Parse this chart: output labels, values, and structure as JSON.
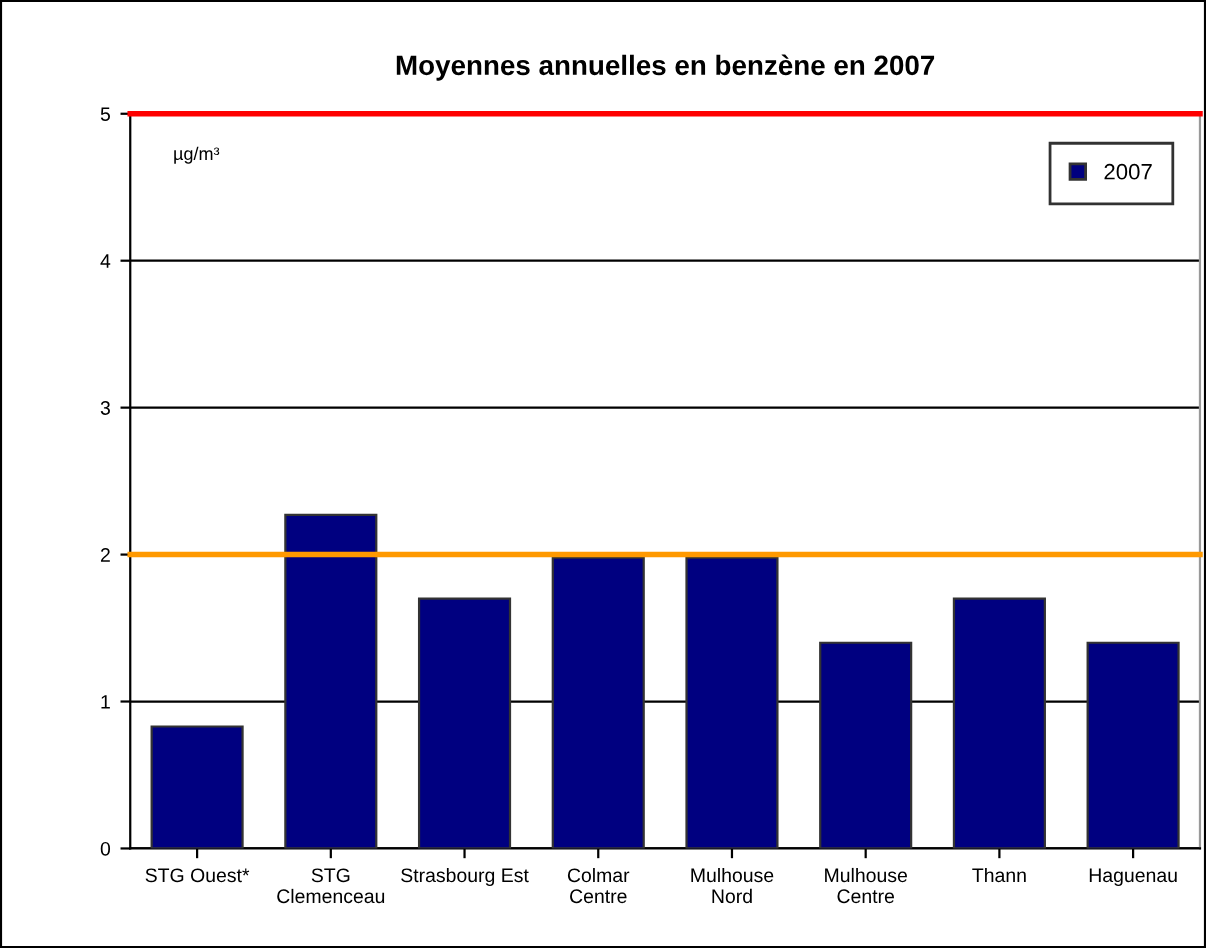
{
  "chart_data": {
    "type": "bar",
    "title": "Moyennes annuelles en benzène en 2007",
    "ylabel": "µg/m³",
    "categories": [
      "STG Ouest*",
      "STG\nClemenceau",
      "Strasbourg Est",
      "Colmar\nCentre",
      "Mulhouse\nNord",
      "Mulhouse\nCentre",
      "Thann",
      "Haguenau"
    ],
    "series": [
      {
        "name": "2007",
        "color": "#000080",
        "values": [
          0.83,
          2.27,
          1.7,
          1.98,
          1.98,
          1.4,
          1.7,
          1.4
        ]
      }
    ],
    "ylim": [
      0,
      5
    ],
    "yticks": [
      0,
      1,
      2,
      3,
      4,
      5
    ],
    "grid": "y",
    "legend": "top right",
    "ref_lines": [
      {
        "axis": "y",
        "value": 5,
        "color": "#ff0000"
      },
      {
        "axis": "y",
        "value": 2,
        "color": "#ff9900"
      }
    ]
  }
}
